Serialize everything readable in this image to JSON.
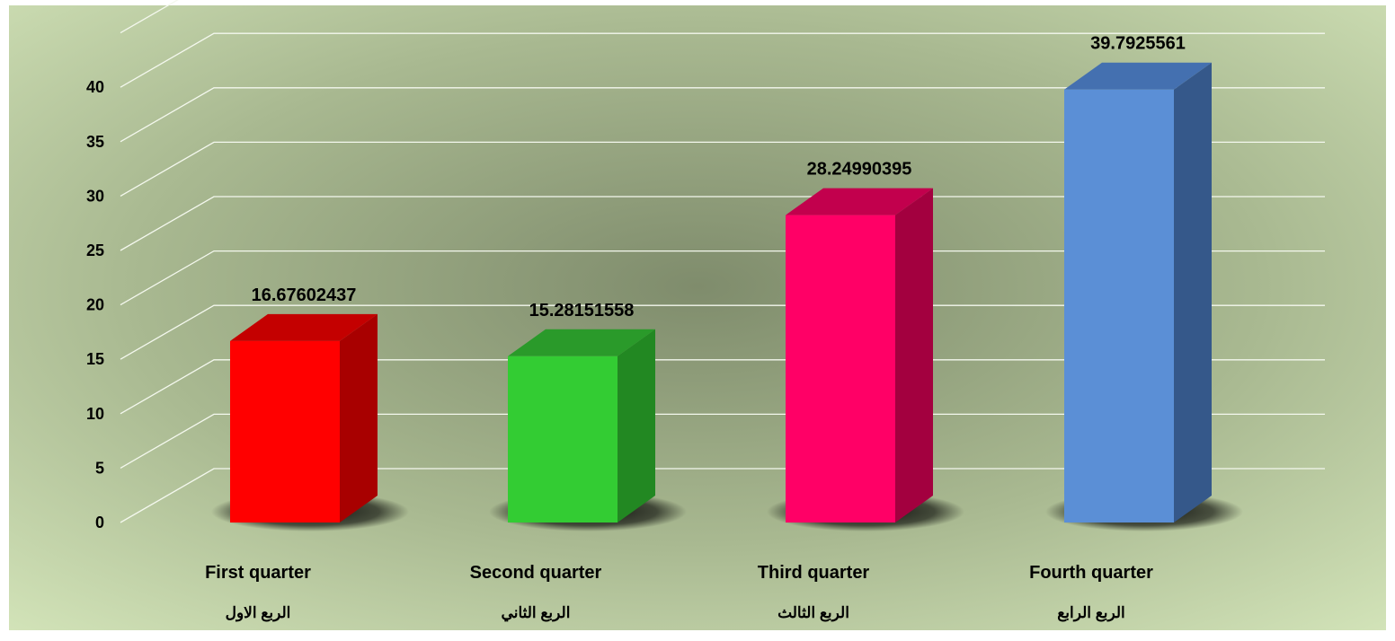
{
  "chart_data": {
    "type": "bar",
    "categories": [
      {
        "en": "First quarter",
        "ar": "الربع الاول"
      },
      {
        "en": "Second quarter",
        "ar": "الربع الثاني"
      },
      {
        "en": "Third quarter",
        "ar": "الربع الثالث"
      },
      {
        "en": "Fourth quarter",
        "ar": "الربع الرابع"
      }
    ],
    "values": [
      16.67602437,
      15.28151558,
      28.24990395,
      39.7925561
    ],
    "value_labels": [
      "16.67602437",
      "15.28151558",
      "28.24990395",
      "39.7925561"
    ],
    "colors": [
      {
        "front": "#ff0000",
        "side": "#a80000",
        "top": "#c40000"
      },
      {
        "front": "#33cc33",
        "side": "#228822",
        "top": "#2a9a2a"
      },
      {
        "front": "#ff0066",
        "side": "#a3003f",
        "top": "#c2004d"
      },
      {
        "front": "#5b8fd6",
        "side": "#35588a",
        "top": "#4470b0"
      }
    ],
    "y_ticks": [
      "0",
      "5",
      "10",
      "15",
      "20",
      "25",
      "30",
      "35",
      "40"
    ],
    "ylim": [
      0,
      45
    ],
    "grid": true,
    "title": "",
    "xlabel": "",
    "ylabel": ""
  }
}
